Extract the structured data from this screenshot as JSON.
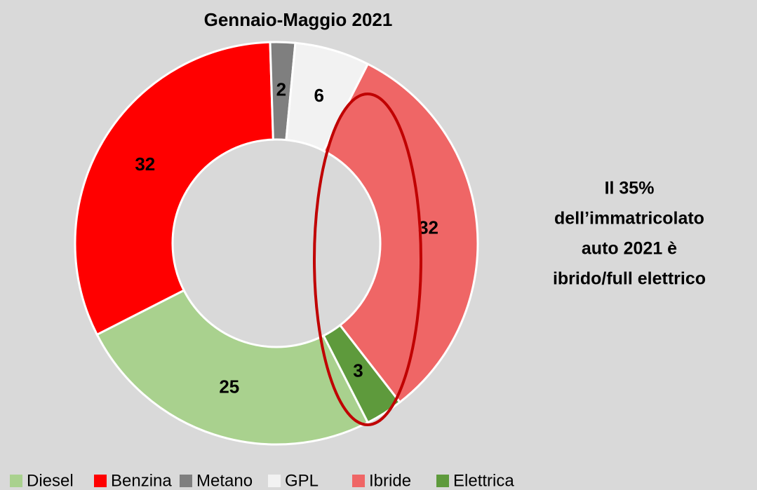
{
  "chart_data": {
    "type": "donut",
    "title": "Gennaio-Maggio 2021",
    "categories": [
      "Diesel",
      "Benzina",
      "Metano",
      "GPL",
      "Ibride",
      "Elettrica"
    ],
    "values": [
      25,
      32,
      2,
      6,
      32,
      3
    ],
    "colors": [
      "#a9d18e",
      "#ff0000",
      "#7f7f7f",
      "#f2f2f2",
      "#ef6666",
      "#5e9a3c"
    ],
    "annotation": [
      "Il 35%",
      "dell’immatricolato",
      "auto 2021 è",
      "ibrido/full elettrico"
    ],
    "legend": "bottom"
  }
}
